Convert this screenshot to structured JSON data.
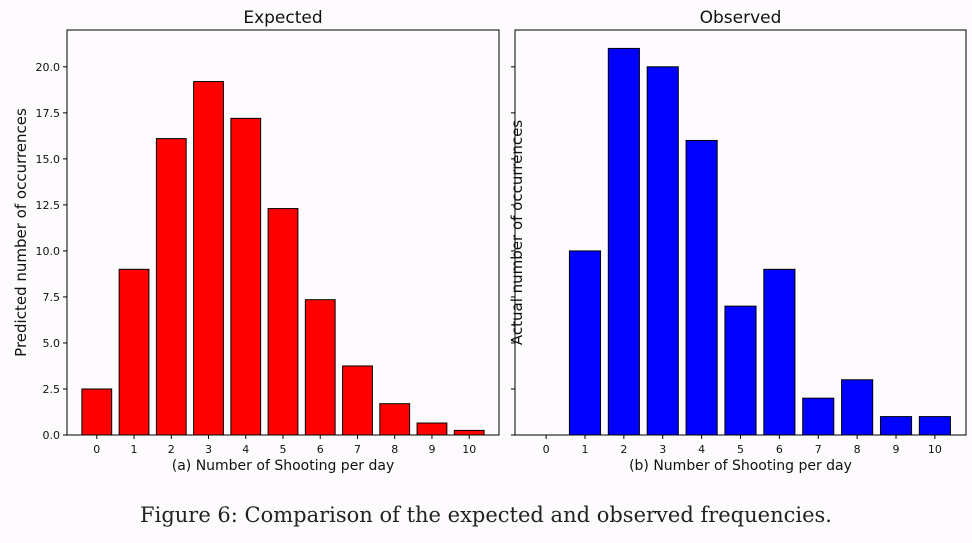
{
  "caption": "Figure 6: Comparison of the expected and observed frequencies.",
  "colors": {
    "expected_bar": "#ff0000",
    "observed_bar": "#0000ff",
    "edge": "#000000"
  },
  "chart_data": [
    {
      "type": "bar",
      "title": "Expected",
      "xlabel": "(a) Number of Shooting per day",
      "ylabel": "Predicted number of occurrences",
      "categories": [
        "0",
        "1",
        "2",
        "3",
        "4",
        "5",
        "6",
        "7",
        "8",
        "9",
        "10"
      ],
      "values": [
        2.5,
        9.0,
        16.1,
        19.2,
        17.2,
        12.3,
        7.35,
        3.75,
        1.7,
        0.65,
        0.25
      ],
      "ylim": [
        0,
        22
      ],
      "yticks": [
        "0.0",
        "2.5",
        "5.0",
        "7.5",
        "10.0",
        "12.5",
        "15.0",
        "17.5",
        "20.0"
      ],
      "grid": false,
      "color": "red"
    },
    {
      "type": "bar",
      "title": "Observed",
      "xlabel": "(b) Number of Shooting per day",
      "ylabel": "Actual number of occurrences",
      "categories": [
        "0",
        "1",
        "2",
        "3",
        "4",
        "5",
        "6",
        "7",
        "8",
        "9",
        "10"
      ],
      "values": [
        0,
        10,
        21,
        20,
        16,
        7,
        9,
        2,
        3,
        1,
        1
      ],
      "ylim": [
        0,
        22
      ],
      "yticks": [
        "",
        "",
        "",
        "",
        "",
        "",
        "",
        "",
        ""
      ],
      "grid": false,
      "color": "blue"
    }
  ]
}
